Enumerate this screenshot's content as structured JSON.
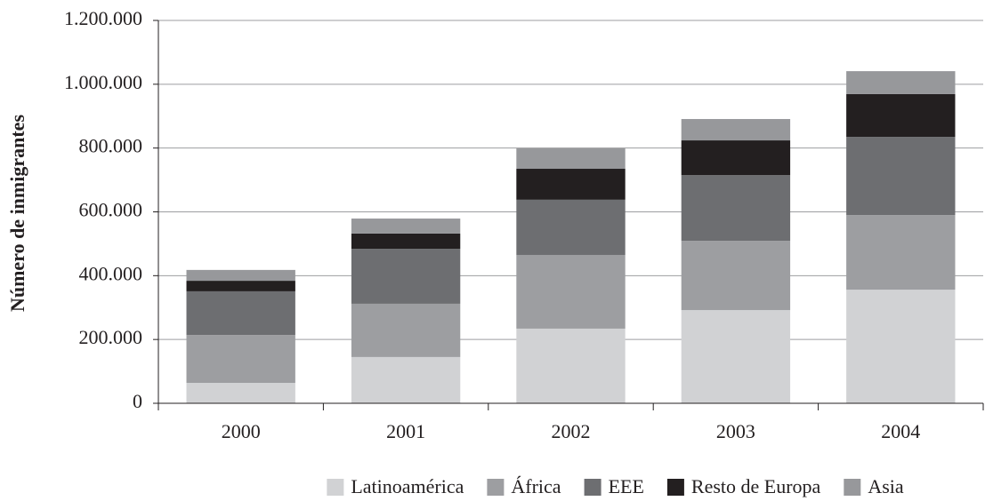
{
  "chart_data": {
    "type": "stacked_bar",
    "ylabel": "Número de inmigrantes",
    "categories": [
      "2000",
      "2001",
      "2002",
      "2003",
      "2004"
    ],
    "series": [
      {
        "name": "Latinoamérica",
        "color": "#d1d2d4",
        "values": [
          64000,
          145000,
          234000,
          292000,
          356000
        ]
      },
      {
        "name": "África",
        "color": "#9d9ea1",
        "values": [
          150000,
          167000,
          231000,
          217000,
          234000
        ]
      },
      {
        "name": "EEE",
        "color": "#6d6e71",
        "values": [
          137000,
          172000,
          173000,
          206000,
          245000
        ]
      },
      {
        "name": "Resto de Europa",
        "color": "#231f20",
        "values": [
          33000,
          48000,
          97000,
          109000,
          134000
        ]
      },
      {
        "name": "Asia",
        "color": "#97989b",
        "values": [
          34000,
          47000,
          64000,
          67000,
          72000
        ]
      }
    ],
    "ylim": [
      0,
      1200000
    ],
    "yticks": [
      0,
      {
        "value": 200000,
        "label": "200.000"
      },
      {
        "value": 400000,
        "label": "400.000"
      },
      {
        "value": 600000,
        "label": "600.000"
      },
      {
        "value": 800000,
        "label": "800.000"
      },
      {
        "value": 1000000,
        "label": "1.000.000"
      },
      {
        "value": 1200000,
        "label": "1.200.000"
      }
    ],
    "grid": true
  }
}
